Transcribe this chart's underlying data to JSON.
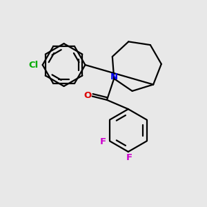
{
  "background_color": "#e8e8e8",
  "bond_color": "#000000",
  "bond_width": 1.6,
  "N_color": "#0000ee",
  "O_color": "#dd0000",
  "Cl_color": "#00aa00",
  "F_color": "#cc00cc",
  "font_size": 9.5,
  "figsize": [
    3.0,
    3.0
  ],
  "dpi": 100,
  "xlim": [
    0,
    10
  ],
  "ylim": [
    0,
    10
  ]
}
